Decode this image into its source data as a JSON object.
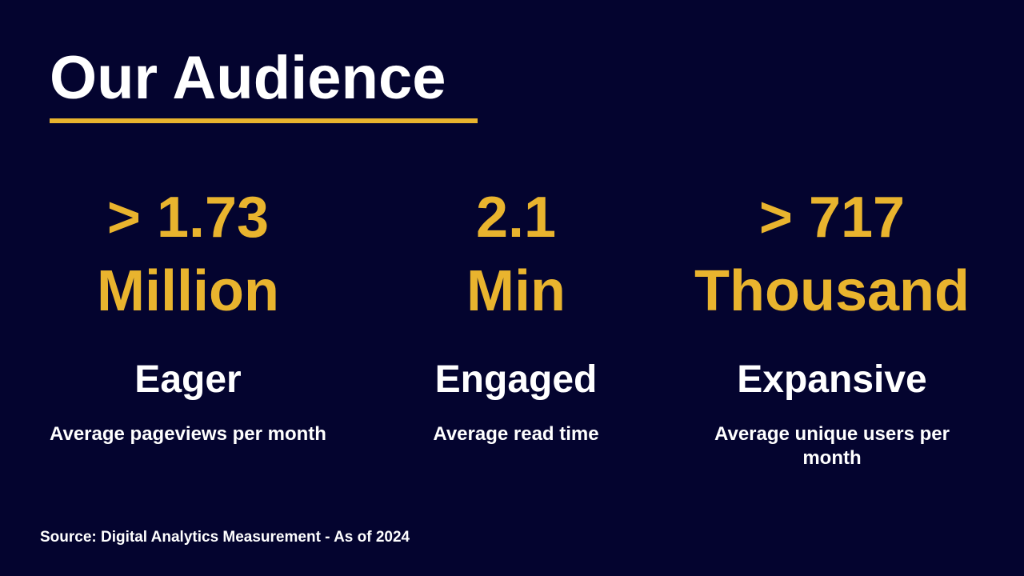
{
  "slide": {
    "title": "Our Audience",
    "stats": [
      {
        "value_line1": "> 1.73",
        "value_line2": "Million",
        "label": "Eager",
        "description": "Average pageviews per month"
      },
      {
        "value_line1": "2.1",
        "value_line2": "Min",
        "label": "Engaged",
        "description": "Average read time"
      },
      {
        "value_line1": "> 717",
        "value_line2": "Thousand",
        "label": "Expansive",
        "description": "Average unique users per month"
      }
    ],
    "source_note": "Source: Digital Analytics Measurement - As of 2024",
    "colors": {
      "background": "#04042F",
      "accent_gold": "#E9B42E",
      "text_white": "#FFFFFF"
    }
  }
}
